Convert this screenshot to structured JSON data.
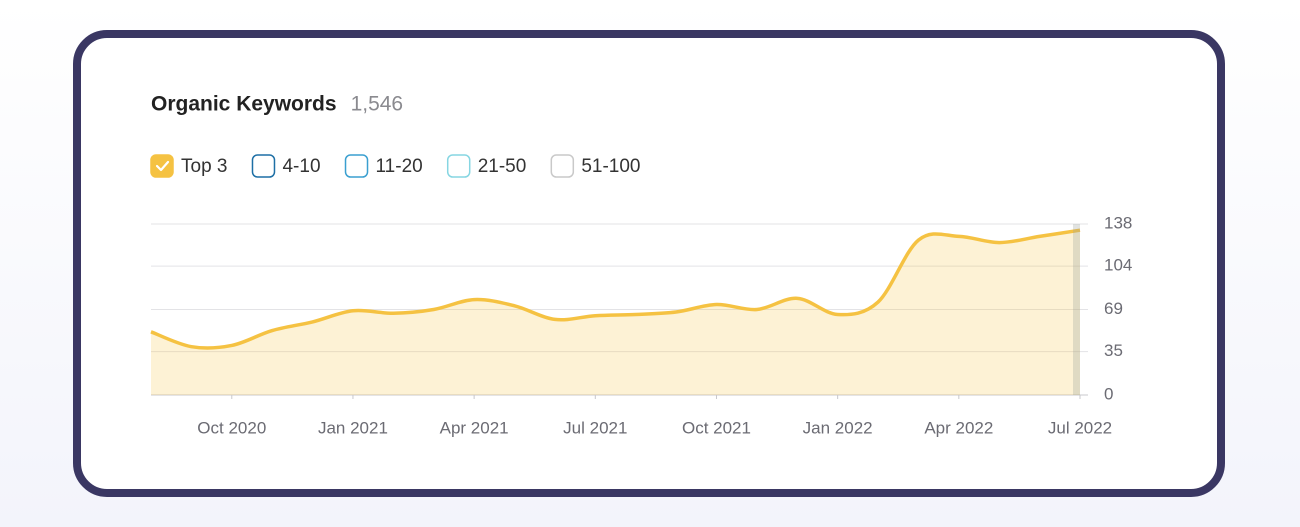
{
  "chart_data": {
    "type": "area",
    "title": "Organic Keywords",
    "total": "1,546",
    "series": [
      {
        "name": "Top 3",
        "color": "#f5c242",
        "checked": true,
        "values": [
          51,
          39,
          40,
          52,
          59,
          68,
          66,
          69,
          77,
          72,
          61,
          64,
          65,
          67,
          73,
          69,
          78,
          65,
          75,
          125,
          128,
          123,
          128,
          133
        ]
      },
      {
        "name": "4-10",
        "color": "#1d6fa5",
        "checked": false
      },
      {
        "name": "11-20",
        "color": "#3a9fd0",
        "checked": false
      },
      {
        "name": "21-50",
        "color": "#86d6e2",
        "checked": false
      },
      {
        "name": "51-100",
        "color": "#c9c9c9",
        "checked": false
      }
    ],
    "x": [
      "2020-08",
      "2020-09",
      "2020-10",
      "2020-11",
      "2020-12",
      "2021-01",
      "2021-02",
      "2021-03",
      "2021-04",
      "2021-05",
      "2021-06",
      "2021-07",
      "2021-08",
      "2021-09",
      "2021-10",
      "2021-11",
      "2021-12",
      "2022-01",
      "2022-02",
      "2022-03",
      "2022-04",
      "2022-05",
      "2022-06",
      "2022-07"
    ],
    "xlim": [
      "2020-08",
      "2022-07"
    ],
    "xticks": [
      {
        "value": "2020-10",
        "label": "Oct 2020"
      },
      {
        "value": "2021-01",
        "label": "Jan 2021"
      },
      {
        "value": "2021-04",
        "label": "Apr 2021"
      },
      {
        "value": "2021-07",
        "label": "Jul 2021"
      },
      {
        "value": "2021-10",
        "label": "Oct 2021"
      },
      {
        "value": "2022-01",
        "label": "Jan 2022"
      },
      {
        "value": "2022-04",
        "label": "Apr 2022"
      },
      {
        "value": "2022-07",
        "label": "Jul 2022"
      }
    ],
    "ylim": [
      0,
      138
    ],
    "yticks": [
      0,
      35,
      69,
      104,
      138
    ],
    "grid": true
  }
}
